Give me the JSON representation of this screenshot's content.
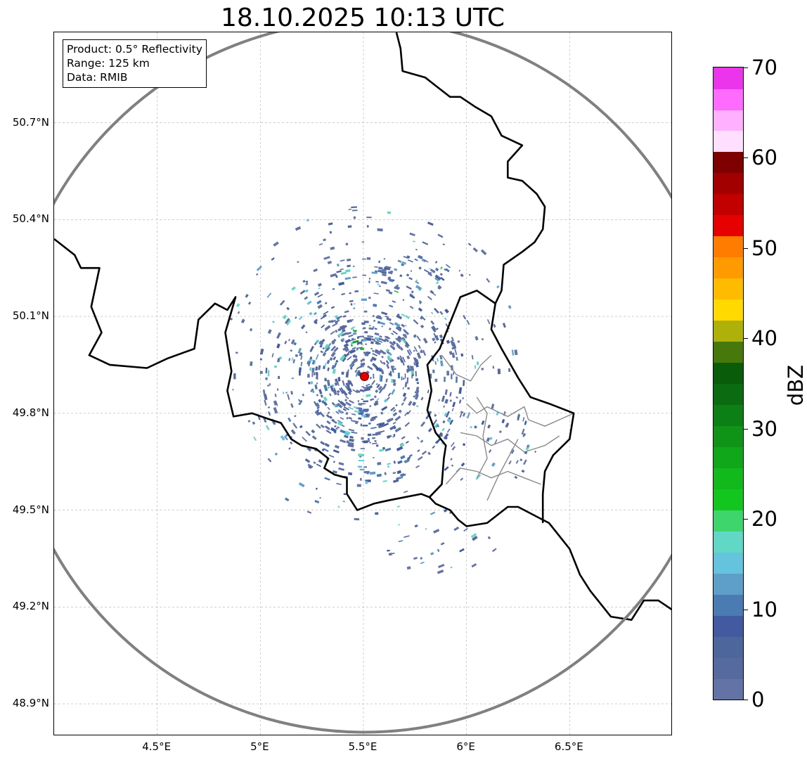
{
  "title": "18.10.2025 10:13 UTC",
  "info_box": {
    "product": "Product: 0.5° Reflectivity",
    "range": "Range: 125 km",
    "data": "Data: RMIB"
  },
  "map": {
    "lon_range": [
      4.0,
      7.0
    ],
    "lat_range": [
      48.8,
      50.98
    ],
    "radar_site": {
      "lon": 5.505,
      "lat": 49.914,
      "marker_color": "#e00000"
    },
    "range_ring_color": "#808080",
    "gridlines": true,
    "lat_ticks": [
      {
        "value": 48.9,
        "label": "48.9°N"
      },
      {
        "value": 49.2,
        "label": "49.2°N"
      },
      {
        "value": 49.5,
        "label": "49.5°N"
      },
      {
        "value": 49.8,
        "label": "49.8°N"
      },
      {
        "value": 50.1,
        "label": "50.1°N"
      },
      {
        "value": 50.4,
        "label": "50.4°N"
      },
      {
        "value": 50.7,
        "label": "50.7°N"
      }
    ],
    "lon_ticks": [
      {
        "value": 4.5,
        "label": "4.5°E"
      },
      {
        "value": 5.0,
        "label": "5°E"
      },
      {
        "value": 5.5,
        "label": "5.5°E"
      },
      {
        "value": 6.0,
        "label": "6°E"
      },
      {
        "value": 6.5,
        "label": "6.5°E"
      }
    ],
    "borders": [
      [
        [
          4.0,
          50.34
        ],
        [
          4.1,
          50.29
        ],
        [
          4.13,
          50.25
        ],
        [
          4.22,
          50.25
        ],
        [
          4.18,
          50.13
        ],
        [
          4.23,
          50.05
        ],
        [
          4.17,
          49.98
        ],
        [
          4.27,
          49.95
        ],
        [
          4.45,
          49.94
        ],
        [
          4.55,
          49.97
        ],
        [
          4.68,
          50.0
        ],
        [
          4.7,
          50.09
        ],
        [
          4.78,
          50.14
        ],
        [
          4.84,
          50.12
        ],
        [
          4.88,
          50.16
        ],
        [
          4.83,
          50.05
        ],
        [
          4.86,
          49.93
        ],
        [
          4.84,
          49.87
        ],
        [
          4.87,
          49.79
        ],
        [
          4.96,
          49.8
        ],
        [
          5.05,
          49.78
        ],
        [
          5.1,
          49.77
        ],
        [
          5.15,
          49.72
        ],
        [
          5.2,
          49.7
        ],
        [
          5.27,
          49.69
        ],
        [
          5.33,
          49.66
        ],
        [
          5.31,
          49.63
        ],
        [
          5.36,
          49.61
        ],
        [
          5.42,
          49.6
        ],
        [
          5.42,
          49.55
        ],
        [
          5.47,
          49.5
        ],
        [
          5.55,
          49.52
        ],
        [
          5.62,
          49.53
        ],
        [
          5.7,
          49.54
        ],
        [
          5.78,
          49.55
        ],
        [
          5.82,
          49.54
        ],
        [
          5.85,
          49.52
        ],
        [
          5.92,
          49.5
        ],
        [
          5.96,
          49.47
        ],
        [
          6.0,
          49.45
        ],
        [
          6.1,
          49.46
        ],
        [
          6.2,
          49.51
        ],
        [
          6.25,
          49.51
        ],
        [
          6.37,
          49.47
        ],
        [
          6.4,
          49.46
        ],
        [
          6.5,
          49.38
        ],
        [
          6.55,
          49.3
        ],
        [
          6.6,
          49.25
        ],
        [
          6.7,
          49.17
        ],
        [
          6.8,
          49.16
        ],
        [
          6.86,
          49.22
        ],
        [
          6.93,
          49.22
        ],
        [
          7.0,
          49.19
        ]
      ],
      [
        [
          5.82,
          49.54
        ],
        [
          5.88,
          49.58
        ],
        [
          5.89,
          49.66
        ],
        [
          5.9,
          49.7
        ],
        [
          5.85,
          49.74
        ],
        [
          5.81,
          49.81
        ],
        [
          5.83,
          49.87
        ],
        [
          5.81,
          49.95
        ],
        [
          5.87,
          50.0
        ],
        [
          5.97,
          50.16
        ],
        [
          6.05,
          50.18
        ],
        [
          6.14,
          50.14
        ],
        [
          6.12,
          50.06
        ],
        [
          6.17,
          50.0
        ],
        [
          6.25,
          49.91
        ],
        [
          6.31,
          49.85
        ],
        [
          6.4,
          49.83
        ],
        [
          6.48,
          49.81
        ],
        [
          6.52,
          49.8
        ],
        [
          6.5,
          49.72
        ],
        [
          6.42,
          49.67
        ],
        [
          6.38,
          49.62
        ],
        [
          6.37,
          49.55
        ],
        [
          6.37,
          49.46
        ]
      ],
      [
        [
          6.14,
          50.14
        ],
        [
          6.17,
          50.18
        ],
        [
          6.18,
          50.26
        ],
        [
          6.27,
          50.3
        ],
        [
          6.33,
          50.33
        ],
        [
          6.37,
          50.37
        ],
        [
          6.38,
          50.44
        ],
        [
          6.34,
          50.48
        ],
        [
          6.27,
          50.52
        ],
        [
          6.2,
          50.53
        ],
        [
          6.2,
          50.58
        ],
        [
          6.27,
          50.63
        ],
        [
          6.17,
          50.66
        ],
        [
          6.12,
          50.72
        ],
        [
          6.04,
          50.75
        ],
        [
          5.97,
          50.78
        ],
        [
          5.92,
          50.78
        ],
        [
          5.86,
          50.81
        ],
        [
          5.8,
          50.84
        ],
        [
          5.69,
          50.86
        ],
        [
          5.68,
          50.93
        ],
        [
          5.66,
          50.98
        ]
      ]
    ],
    "admin_lines": [
      [
        [
          6.0,
          49.83
        ],
        [
          6.05,
          49.8
        ],
        [
          6.1,
          49.82
        ],
        [
          6.2,
          49.79
        ],
        [
          6.28,
          49.82
        ],
        [
          6.3,
          49.78
        ],
        [
          6.38,
          49.76
        ],
        [
          6.45,
          49.78
        ],
        [
          6.52,
          49.8
        ]
      ],
      [
        [
          5.97,
          49.74
        ],
        [
          6.05,
          49.73
        ],
        [
          6.12,
          49.7
        ],
        [
          6.2,
          49.72
        ],
        [
          6.28,
          49.68
        ],
        [
          6.38,
          49.7
        ],
        [
          6.45,
          49.73
        ]
      ],
      [
        [
          6.05,
          49.6
        ],
        [
          6.1,
          49.66
        ],
        [
          6.08,
          49.73
        ],
        [
          6.1,
          49.8
        ],
        [
          6.05,
          49.85
        ]
      ],
      [
        [
          5.9,
          49.58
        ],
        [
          5.97,
          49.63
        ],
        [
          6.05,
          49.62
        ],
        [
          6.12,
          49.6
        ],
        [
          6.2,
          49.62
        ],
        [
          6.28,
          49.6
        ],
        [
          6.36,
          49.58
        ]
      ],
      [
        [
          6.1,
          49.53
        ],
        [
          6.15,
          49.6
        ],
        [
          6.2,
          49.66
        ],
        [
          6.25,
          49.72
        ]
      ],
      [
        [
          5.88,
          49.98
        ],
        [
          5.95,
          49.92
        ],
        [
          6.02,
          49.9
        ],
        [
          6.07,
          49.95
        ],
        [
          6.12,
          49.98
        ]
      ]
    ],
    "echo_clusters": [
      {
        "lon": 5.5,
        "lat": 49.91,
        "rx": 0.27,
        "ry": 0.22,
        "n": 300,
        "max_dbz": 12
      },
      {
        "lon": 5.5,
        "lat": 49.93,
        "rx": 0.5,
        "ry": 0.36,
        "n": 460,
        "max_dbz": 20
      },
      {
        "lon": 5.55,
        "lat": 49.95,
        "rx": 0.72,
        "ry": 0.52,
        "n": 200,
        "max_dbz": 20
      },
      {
        "lon": 5.72,
        "lat": 50.23,
        "rx": 0.2,
        "ry": 0.06,
        "n": 50,
        "max_dbz": 24
      },
      {
        "lon": 5.45,
        "lat": 50.03,
        "rx": 0.08,
        "ry": 0.04,
        "n": 20,
        "max_dbz": 30
      },
      {
        "lon": 6.1,
        "lat": 49.7,
        "rx": 0.25,
        "ry": 0.12,
        "n": 40,
        "max_dbz": 20
      },
      {
        "lon": 5.9,
        "lat": 49.4,
        "rx": 0.3,
        "ry": 0.1,
        "n": 28,
        "max_dbz": 18
      }
    ]
  },
  "colorbar": {
    "unit": "dBZ",
    "min": 0,
    "max": 70,
    "step": 2.5,
    "colors": [
      "#6473a6",
      "#566aa0",
      "#4d669c",
      "#425aa0",
      "#4b7bb3",
      "#5e9fc9",
      "#64c4de",
      "#61d8c6",
      "#3ed66c",
      "#12c61e",
      "#11b91b",
      "#10a71a",
      "#0f9418",
      "#0d8015",
      "#0a6b11",
      "#095d0a",
      "#47780b",
      "#afb10b",
      "#ffd900",
      "#ffbb00",
      "#ff9b00",
      "#ff7c00",
      "#e60000",
      "#c20000",
      "#a20000",
      "#7f0000",
      "#ffdfff",
      "#ffb1ff",
      "#ff6bff",
      "#ec34ec"
    ],
    "ticks": [
      {
        "value": 0,
        "label": "0"
      },
      {
        "value": 10,
        "label": "10"
      },
      {
        "value": 20,
        "label": "20"
      },
      {
        "value": 30,
        "label": "30"
      },
      {
        "value": 40,
        "label": "40"
      },
      {
        "value": 50,
        "label": "50"
      },
      {
        "value": 60,
        "label": "60"
      },
      {
        "value": 70,
        "label": "70"
      }
    ]
  }
}
